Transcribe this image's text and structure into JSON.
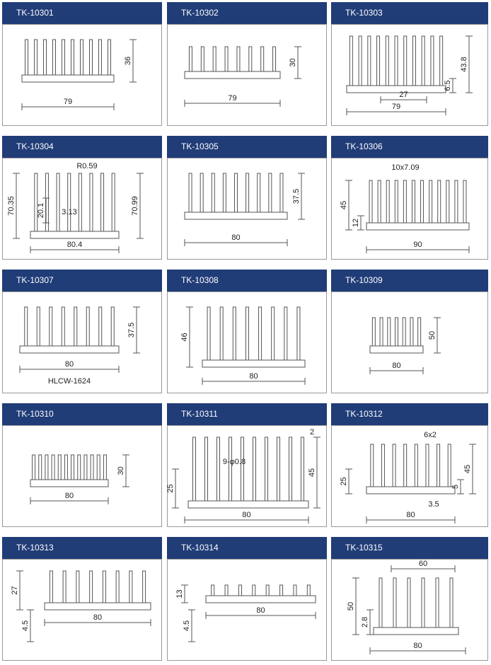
{
  "products": [
    {
      "code": "TK-10301",
      "dims": [
        "36",
        "79"
      ]
    },
    {
      "code": "TK-10302",
      "dims": [
        "30",
        "79"
      ]
    },
    {
      "code": "TK-10303",
      "dims": [
        "6.5",
        "43.8",
        "27",
        "79"
      ]
    },
    {
      "code": "TK-10304",
      "dims": [
        "R0.59",
        "70.35",
        "20.1",
        "3.13",
        "70.99",
        "80.4"
      ]
    },
    {
      "code": "TK-10305",
      "dims": [
        "37.5",
        "80"
      ]
    },
    {
      "code": "TK-10306",
      "dims": [
        "10x7.09",
        "45",
        "12",
        "90"
      ]
    },
    {
      "code": "TK-10307",
      "dims": [
        "37.5",
        "80",
        "HLCW-1624"
      ]
    },
    {
      "code": "TK-10308",
      "dims": [
        "46",
        "80"
      ]
    },
    {
      "code": "TK-10309",
      "dims": [
        "50",
        "80"
      ]
    },
    {
      "code": "TK-10310",
      "dims": [
        "30",
        "80"
      ]
    },
    {
      "code": "TK-10311",
      "dims": [
        "2",
        "9-φ0.8",
        "25",
        "45",
        "80"
      ]
    },
    {
      "code": "TK-10312",
      "dims": [
        "6x2",
        "25",
        "45",
        "5",
        "3.5",
        "80"
      ]
    },
    {
      "code": "TK-10313",
      "dims": [
        "27",
        "4.5",
        "80"
      ]
    },
    {
      "code": "TK-10314",
      "dims": [
        "13",
        "4.5",
        "80"
      ]
    },
    {
      "code": "TK-10315",
      "dims": [
        "60",
        "50",
        "2.8",
        "80"
      ]
    }
  ]
}
